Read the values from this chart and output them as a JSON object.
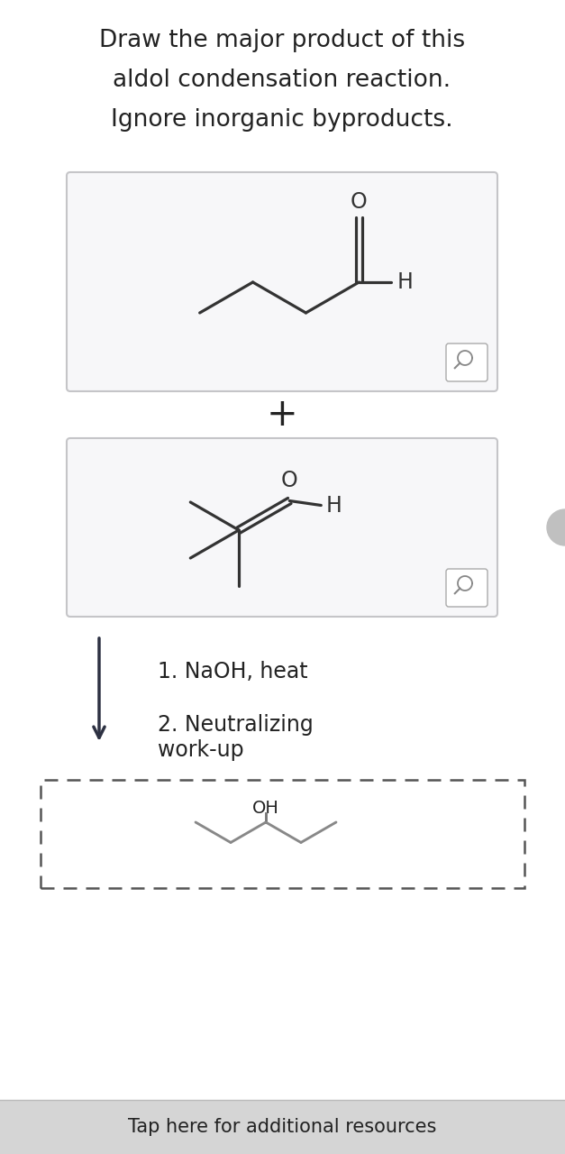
{
  "title_lines": [
    "Draw the major product of this",
    "aldol condensation reaction.",
    "Ignore inorganic byproducts."
  ],
  "title_fontsize": 19,
  "bg_color": "#ffffff",
  "box_border_color": "#cccccc",
  "line_color": "#333333",
  "text_color": "#222222",
  "plus_sign": "+",
  "condition1": "1. NaOH, heat",
  "condition2": "2. Neutralizing\nwork-up",
  "product_label": "OH",
  "tap_text": "Tap here for additional resources",
  "tap_bg": "#d5d5d5"
}
